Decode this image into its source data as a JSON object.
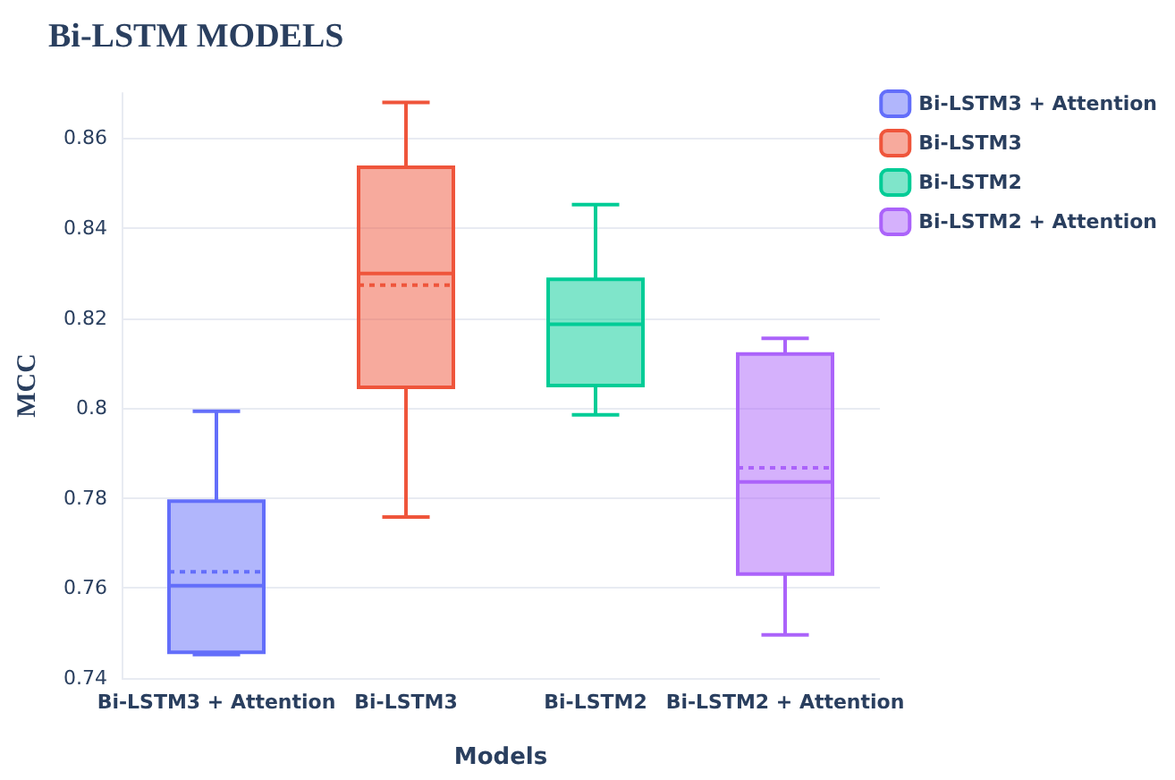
{
  "chart_data": {
    "type": "box",
    "title": "Bi-LSTM MODELS",
    "xlabel": "Models",
    "ylabel": "MCC",
    "categories": [
      "Bi-LSTM3 + Attention",
      "Bi-LSTM3",
      "Bi-LSTM2",
      "Bi-LSTM2 + Attention"
    ],
    "series": [
      {
        "name": "Bi-LSTM3 + Attention",
        "color": "#636efa",
        "x": [
          "Bi-LSTM3 + Attention"
        ],
        "boxes": [
          {
            "low": 0.7452,
            "q1": 0.7457,
            "median": 0.7605,
            "q3": 0.7793,
            "high": 0.7993,
            "mean": 0.7636
          }
        ]
      },
      {
        "name": "Bi-LSTM3",
        "color": "#ef553b",
        "x": [
          "Bi-LSTM3"
        ],
        "boxes": [
          {
            "low": 0.7758,
            "q1": 0.8046,
            "median": 0.8299,
            "q3": 0.8535,
            "high": 0.8679,
            "mean": 0.8273
          }
        ]
      },
      {
        "name": "Bi-LSTM2",
        "color": "#00cc96",
        "x": [
          "Bi-LSTM2"
        ],
        "boxes": [
          {
            "low": 0.7985,
            "q1": 0.805,
            "median": 0.8186,
            "q3": 0.8286,
            "high": 0.8452
          }
        ]
      },
      {
        "name": "Bi-LSTM2 + Attention",
        "color": "#ab63fa",
        "x": [
          "Bi-LSTM2 + Attention"
        ],
        "boxes": [
          {
            "low": 0.7496,
            "q1": 0.7631,
            "median": 0.7836,
            "q3": 0.812,
            "high": 0.8155,
            "mean": 0.7867
          }
        ]
      }
    ],
    "ylim": [
      0.74,
      0.87
    ],
    "yticks": [
      0.74,
      0.76,
      0.78,
      0.8,
      0.82,
      0.84,
      0.86
    ],
    "grid": "y",
    "legend": "top right"
  }
}
